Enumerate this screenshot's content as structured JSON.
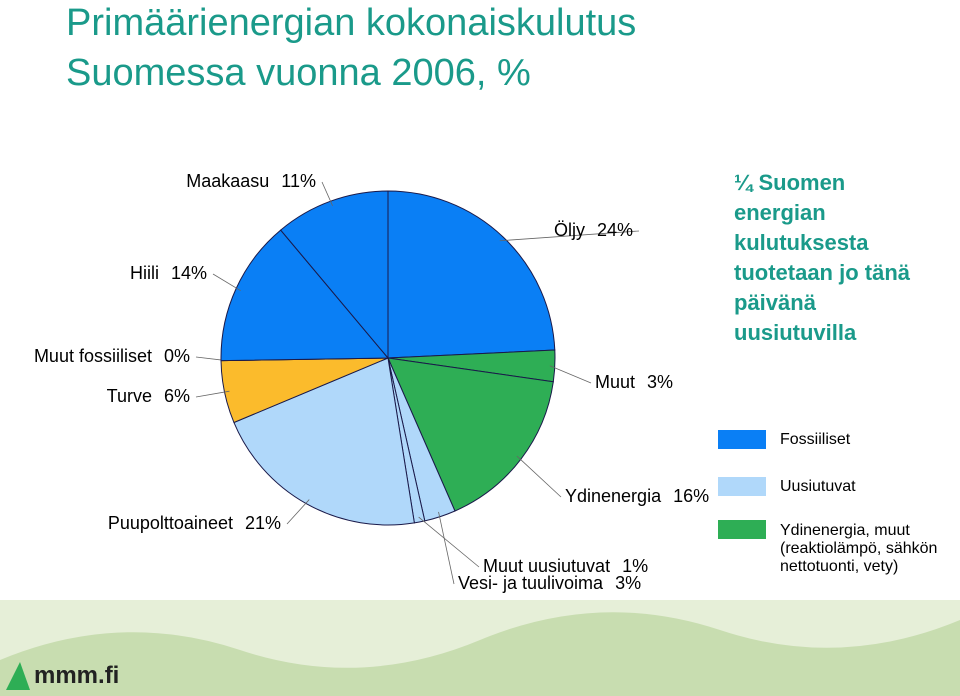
{
  "chart_data": {
    "type": "pie",
    "title": "Primäärienergian kokonaiskulutus",
    "subtitle": "Suomessa vuonna 2006, %",
    "categories": [
      "Öljy",
      "Muut",
      "Ydinenergia",
      "Vesi- ja tuulivoima",
      "Muut uusiutuvat",
      "Puupolttoaineet",
      "Turve",
      "Muut fossiiliset",
      "Hiili",
      "Maakaasu"
    ],
    "values": [
      24,
      3,
      16,
      3,
      1,
      21,
      6,
      0,
      14,
      11
    ],
    "value_labels": [
      "24%",
      "3%",
      "16%",
      "3%",
      "1%",
      "21%",
      "6%",
      "0%",
      "14%",
      "11%"
    ],
    "colors": [
      "#0a7ff5",
      "#2eae55",
      "#2eae55",
      "#b0d8fa",
      "#b0d8fa",
      "#b0d8fa",
      "#fbbb2c",
      "#0a7ff5",
      "#0a7ff5",
      "#0a7ff5"
    ],
    "legend": [
      {
        "name": "Fossiiliset",
        "color": "#0a7ff5"
      },
      {
        "name": "Uusiutuvat",
        "color": "#b0d8fa"
      },
      {
        "name": "Ydinenergia, muut (reaktiolämpö, sähkön nettotuonti, vety)",
        "color": "#2eae55"
      }
    ],
    "annotation": "¼ Suomen energian kulutuksesta tuotetaan jo tänä päivänä uusiutuvilla",
    "footer": "mmm.fi"
  }
}
